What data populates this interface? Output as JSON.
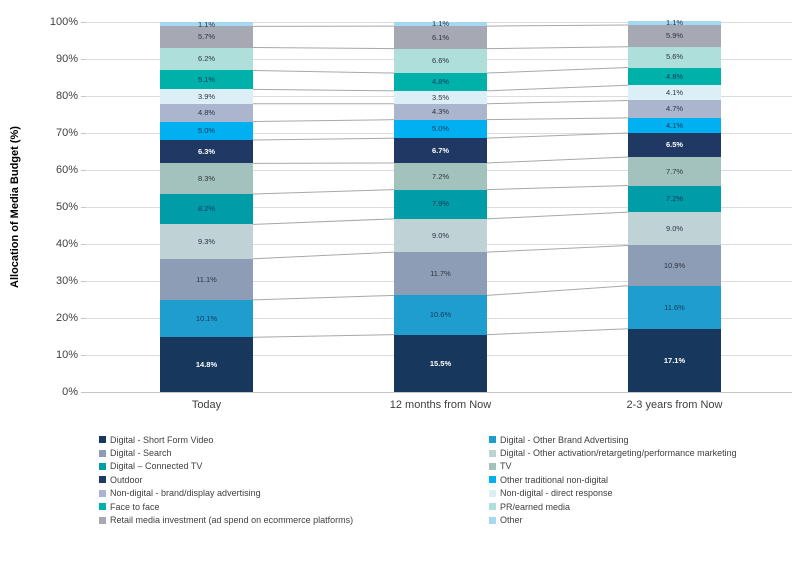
{
  "chart_data": {
    "type": "bar",
    "subtype": "stacked-percent-column",
    "title": "",
    "xlabel": "",
    "ylabel": "Allocation of Media Budget (%)",
    "ylim": [
      0,
      100
    ],
    "y_ticks": [
      0,
      10,
      20,
      30,
      40,
      50,
      60,
      70,
      80,
      90,
      100
    ],
    "y_tick_suffix": "%",
    "grid": true,
    "categories": [
      "Today",
      "12 months from Now",
      "2-3 years from Now"
    ],
    "series": [
      {
        "name": "Digital - Short Form Video",
        "color": "#17375D",
        "values": [
          14.8,
          15.5,
          17.1
        ],
        "label_color": "#FFFFFF",
        "label_bold": true
      },
      {
        "name": "Digital - Other Brand Advertising",
        "color": "#1F9DCE",
        "values": [
          10.1,
          10.6,
          11.6
        ],
        "label_color": "#17375D",
        "label_bold": false
      },
      {
        "name": "Digital - Search",
        "color": "#8D9DB5",
        "values": [
          11.1,
          11.7,
          10.9
        ],
        "label_color": "#2E3440",
        "label_bold": false
      },
      {
        "name": "Digital - Other activation/retargeting/performance marketing",
        "color": "#BFD2D6",
        "values": [
          9.3,
          9.0,
          9.0
        ],
        "label_color": "#2E3440",
        "label_bold": false
      },
      {
        "name": "Digital – Connected TV",
        "color": "#009CA8",
        "values": [
          8.2,
          7.9,
          7.2
        ],
        "label_color": "#17375D",
        "label_bold": false
      },
      {
        "name": "TV",
        "color": "#A3C2BE",
        "values": [
          8.3,
          7.2,
          7.7
        ],
        "label_color": "#2E3440",
        "label_bold": false
      },
      {
        "name": "Outdoor",
        "color": "#1F3864",
        "values": [
          6.3,
          6.7,
          6.5
        ],
        "label_color": "#FFFFFF",
        "label_bold": true
      },
      {
        "name": "Other traditional non-digital",
        "color": "#00B0F0",
        "values": [
          5.0,
          5.0,
          4.1
        ],
        "label_color": "#17375D",
        "label_bold": false
      },
      {
        "name": "Non-digital - brand/display advertising",
        "color": "#ACB5CE",
        "values": [
          4.8,
          4.3,
          4.7
        ],
        "label_color": "#2E3440",
        "label_bold": false
      },
      {
        "name": "Non-digital - direct response",
        "color": "#DDEFF6",
        "values": [
          3.9,
          3.5,
          4.1
        ],
        "label_color": "#2E3440",
        "label_bold": false
      },
      {
        "name": "Face to face",
        "color": "#00B1A9",
        "values": [
          5.1,
          4.8,
          4.8
        ],
        "label_color": "#17375D",
        "label_bold": false
      },
      {
        "name": "PR/earned media",
        "color": "#AEDFDB",
        "values": [
          6.2,
          6.6,
          5.6
        ],
        "label_color": "#2E3440",
        "label_bold": false
      },
      {
        "name": "Retail media investment (ad spend on ecommerce platforms)",
        "color": "#A6A8B4",
        "values": [
          5.7,
          6.1,
          5.9
        ],
        "label_color": "#2E3440",
        "label_bold": false
      },
      {
        "name": "Other",
        "color": "#A5D8F2",
        "values": [
          1.1,
          1.1,
          1.1
        ],
        "label_color": "#2E3440",
        "label_bold": false
      }
    ],
    "legend": {
      "position": "bottom",
      "columns": [
        [
          0,
          2,
          4,
          6,
          8,
          10,
          12
        ],
        [
          1,
          3,
          5,
          7,
          9,
          11,
          13
        ]
      ]
    }
  }
}
